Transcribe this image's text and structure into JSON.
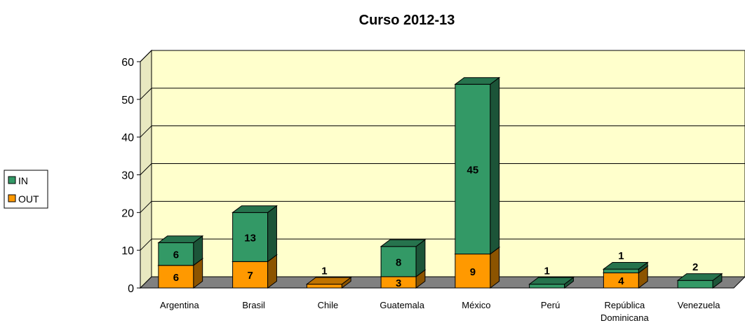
{
  "chart_data": {
    "type": "bar",
    "stacked": true,
    "style": "3d",
    "title": "Curso 2012-13",
    "xlabel": "",
    "ylabel": "",
    "ylim": [
      0,
      60
    ],
    "yticks": [
      "0",
      "10",
      "20",
      "30",
      "40",
      "50",
      "60"
    ],
    "categories": [
      "Argentina",
      "Brasil",
      "Chile",
      "Guatemala",
      "México",
      "Perú",
      "República Dominicana",
      "Venezuela"
    ],
    "series": [
      {
        "name": "OUT",
        "color": "#ff9900",
        "values": [
          6,
          7,
          1,
          3,
          9,
          0,
          4,
          0
        ]
      },
      {
        "name": "IN",
        "color": "#339966",
        "values": [
          6,
          13,
          0,
          8,
          45,
          1,
          1,
          2
        ]
      }
    ],
    "legend": "left",
    "grid": true,
    "plot_background": "#ffffcc",
    "floor_color": "#808080"
  }
}
